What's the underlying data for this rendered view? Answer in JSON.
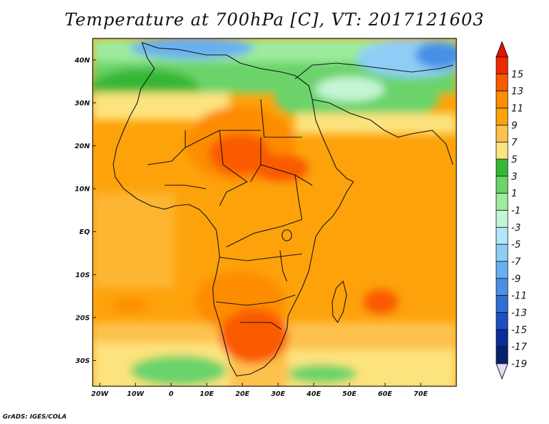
{
  "title": "Temperature at 700hPa [C], VT: 2017121603",
  "credit": "GrADS: IGES/COLA",
  "map": {
    "lon_range": [
      -22,
      80
    ],
    "lat_range": [
      -36,
      45
    ],
    "lat_ticks": [
      {
        "value": 40,
        "label": "40N"
      },
      {
        "value": 30,
        "label": "30N"
      },
      {
        "value": 20,
        "label": "20N"
      },
      {
        "value": 10,
        "label": "10N"
      },
      {
        "value": 0,
        "label": "EQ"
      },
      {
        "value": -10,
        "label": "10S"
      },
      {
        "value": -20,
        "label": "20S"
      },
      {
        "value": -30,
        "label": "30S"
      }
    ],
    "lon_ticks": [
      {
        "value": -20,
        "label": "20W"
      },
      {
        "value": -10,
        "label": "10W"
      },
      {
        "value": 0,
        "label": "0"
      },
      {
        "value": 10,
        "label": "10E"
      },
      {
        "value": 20,
        "label": "20E"
      },
      {
        "value": 30,
        "label": "30E"
      },
      {
        "value": 40,
        "label": "40E"
      },
      {
        "value": 50,
        "label": "50E"
      },
      {
        "value": 60,
        "label": "60E"
      },
      {
        "value": 70,
        "label": "70E"
      }
    ]
  },
  "colorbar": {
    "labels": [
      "15",
      "13",
      "11",
      "9",
      "7",
      "5",
      "3",
      "1",
      "-1",
      "-3",
      "-5",
      "-7",
      "-9",
      "-11",
      "-13",
      "-15",
      "-17",
      "-19"
    ],
    "colors": [
      "#f02a00",
      "#fa5a00",
      "#fd8c00",
      "#fda20a",
      "#fdc24d",
      "#fde37e",
      "#34b734",
      "#6ad36a",
      "#9deb9d",
      "#c6f5d4",
      "#b4e6fb",
      "#8fcdf7",
      "#68b0f0",
      "#4a90e4",
      "#2d6ed2",
      "#1c4fc0",
      "#0d2c96",
      "#09206a"
    ],
    "top_arrow_color": "#e01400",
    "bottom_arrow_color": "#e2dcf5"
  }
}
